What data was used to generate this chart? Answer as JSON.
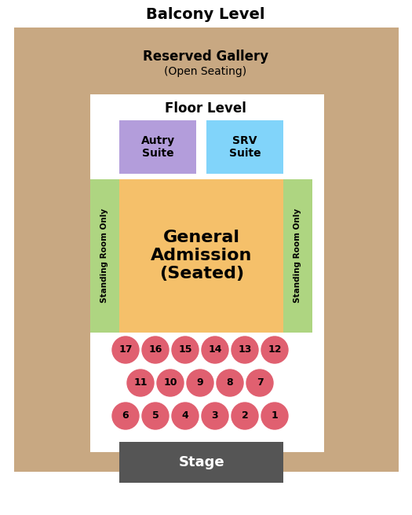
{
  "title": "Balcony Level",
  "bg_outer": "#c8a882",
  "bg_inner": "#ffffff",
  "reserved_gallery_label_line1": "Reserved Gallery",
  "reserved_gallery_label_line2": "(Open Seating)",
  "floor_level_label": "Floor Level",
  "autry_suite_label": "Autry\nSuite",
  "autry_suite_color": "#b39ddb",
  "srv_suite_label": "SRV\nSuite",
  "srv_suite_color": "#81d4fa",
  "ga_label": "General\nAdmission\n(Seated)",
  "ga_color": "#f5c06a",
  "standing_color": "#aed581",
  "standing_label": "Standing Room Only",
  "stage_color": "#555555",
  "stage_label": "Stage",
  "seat_color": "#e06070",
  "row1": [
    17,
    16,
    15,
    14,
    13,
    12
  ],
  "row2": [
    11,
    10,
    9,
    8,
    7
  ],
  "row3": [
    6,
    5,
    4,
    3,
    2,
    1
  ],
  "figw": 5.25,
  "figh": 6.55,
  "dpi": 100
}
